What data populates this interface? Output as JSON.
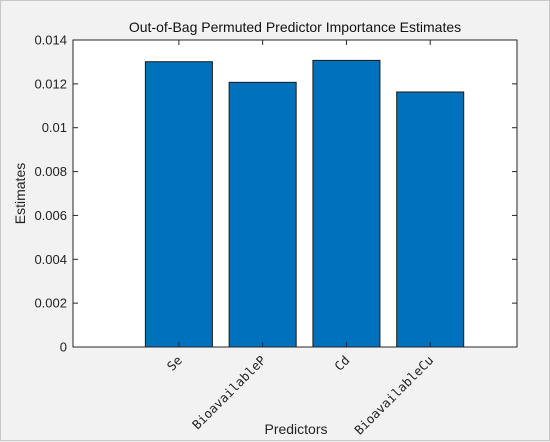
{
  "chart_data": {
    "type": "bar",
    "title": "Out-of-Bag Permuted Predictor Importance Estimates",
    "xlabel": "Predictors",
    "ylabel": "Estimates",
    "categories": [
      "Se",
      "BioavailableP",
      "Cd",
      "BioavailableCu"
    ],
    "values": [
      0.01301,
      0.01207,
      0.01307,
      0.01163
    ],
    "ylim": [
      0,
      0.014
    ],
    "yticks": [
      0,
      0.002,
      0.004,
      0.006,
      0.008,
      0.01,
      0.012,
      0.014
    ],
    "ytick_labels": [
      "0",
      "0.002",
      "0.004",
      "0.006",
      "0.008",
      "0.01",
      "0.012",
      "0.014"
    ],
    "grid": false,
    "bar_color": "#0072BD",
    "bar_edge_color": "#1a1a1a"
  }
}
